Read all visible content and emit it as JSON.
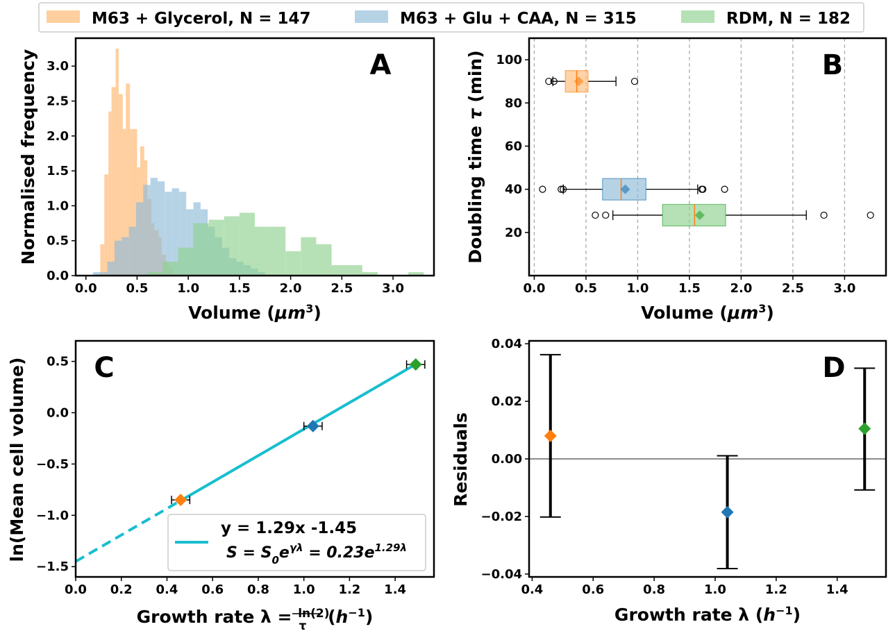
{
  "legend": {
    "entries": [
      {
        "label": "M63 + Glycerol, N = 147",
        "color": "#ffbb78"
      },
      {
        "label": "M63 + Glu + CAA, N = 315",
        "color": "#8fbbd9"
      },
      {
        "label": "RDM, N = 182",
        "color": "#8fd18f"
      }
    ]
  },
  "chart_data": [
    {
      "panel": "A",
      "type": "histogram",
      "xlabel": "Volume (μm³)",
      "ylabel": "Normalised frequency",
      "xlim": [
        -0.1,
        3.4
      ],
      "ylim": [
        0,
        3.4
      ],
      "xticks": [
        "0.0",
        "0.5",
        "1.0",
        "1.5",
        "2.0",
        "2.5",
        "3.0"
      ],
      "yticks": [
        "0.0",
        "0.5",
        "1.0",
        "1.5",
        "2.0",
        "2.5",
        "3.0"
      ],
      "series": [
        {
          "name": "M63 + Glycerol, N = 147",
          "color": "#ffbb78",
          "opacity": 0.7,
          "bins": [
            [
              0.14,
              0.18,
              0.45
            ],
            [
              0.18,
              0.22,
              1.45
            ],
            [
              0.22,
              0.25,
              2.35
            ],
            [
              0.25,
              0.29,
              2.7
            ],
            [
              0.29,
              0.32,
              3.25
            ],
            [
              0.32,
              0.36,
              2.6
            ],
            [
              0.36,
              0.39,
              2.1
            ],
            [
              0.39,
              0.43,
              2.75
            ],
            [
              0.43,
              0.46,
              2.1
            ],
            [
              0.46,
              0.5,
              2.1
            ],
            [
              0.5,
              0.53,
              1.55
            ],
            [
              0.53,
              0.57,
              1.85
            ],
            [
              0.57,
              0.6,
              1.65
            ],
            [
              0.6,
              0.64,
              1.1
            ],
            [
              0.64,
              0.67,
              0.75
            ],
            [
              0.67,
              0.71,
              0.65
            ],
            [
              0.71,
              0.74,
              0.55
            ],
            [
              0.74,
              0.78,
              0.3
            ],
            [
              0.78,
              0.81,
              0.2
            ],
            [
              0.81,
              0.85,
              0.1
            ]
          ]
        },
        {
          "name": "M63 + Glu + CAA, N = 315",
          "color": "#8fbbd9",
          "opacity": 0.65,
          "bins": [
            [
              0.07,
              0.14,
              0.05
            ],
            [
              0.14,
              0.21,
              0.05
            ],
            [
              0.21,
              0.28,
              0.2
            ],
            [
              0.28,
              0.35,
              0.5
            ],
            [
              0.35,
              0.42,
              0.55
            ],
            [
              0.42,
              0.49,
              0.7
            ],
            [
              0.49,
              0.56,
              1.05
            ],
            [
              0.56,
              0.63,
              1.3
            ],
            [
              0.63,
              0.7,
              1.4
            ],
            [
              0.7,
              0.77,
              1.35
            ],
            [
              0.77,
              0.84,
              1.2
            ],
            [
              0.84,
              0.91,
              1.25
            ],
            [
              0.91,
              0.98,
              1.2
            ],
            [
              0.98,
              1.05,
              0.95
            ],
            [
              1.05,
              1.12,
              1.05
            ],
            [
              1.12,
              1.19,
              0.95
            ],
            [
              1.19,
              1.26,
              0.7
            ],
            [
              1.26,
              1.33,
              0.55
            ],
            [
              1.33,
              1.4,
              0.4
            ],
            [
              1.4,
              1.47,
              0.25
            ],
            [
              1.47,
              1.54,
              0.2
            ],
            [
              1.54,
              1.61,
              0.15
            ],
            [
              1.61,
              1.68,
              0.1
            ],
            [
              1.68,
              1.75,
              0.05
            ]
          ]
        },
        {
          "name": "RDM, N = 182",
          "color": "#8fd18f",
          "opacity": 0.65,
          "bins": [
            [
              0.6,
              0.75,
              0.05
            ],
            [
              0.75,
              0.9,
              0.2
            ],
            [
              0.9,
              1.05,
              0.4
            ],
            [
              1.05,
              1.2,
              0.75
            ],
            [
              1.2,
              1.35,
              0.8
            ],
            [
              1.35,
              1.5,
              0.85
            ],
            [
              1.5,
              1.65,
              0.9
            ],
            [
              1.65,
              1.8,
              0.7
            ],
            [
              1.8,
              1.95,
              0.7
            ],
            [
              1.95,
              2.1,
              0.35
            ],
            [
              2.1,
              2.25,
              0.55
            ],
            [
              2.25,
              2.4,
              0.45
            ],
            [
              2.4,
              2.55,
              0.15
            ],
            [
              2.55,
              2.7,
              0.15
            ],
            [
              2.7,
              2.85,
              0.05
            ],
            [
              3.15,
              3.3,
              0.05
            ]
          ]
        }
      ],
      "panel_label": "A"
    },
    {
      "panel": "B",
      "type": "boxplot",
      "xlabel": "Volume (μm³)",
      "ylabel": "Doubling time τ (min)",
      "xlim": [
        -0.05,
        3.4
      ],
      "ylim": [
        0,
        110
      ],
      "xticks": [
        "0.0",
        "0.5",
        "1.0",
        "1.5",
        "2.0",
        "2.5",
        "3.0"
      ],
      "yticks": [
        "20",
        "40",
        "60",
        "80",
        "100"
      ],
      "grid": "vertical dashed",
      "boxes": [
        {
          "name": "M63 + Glycerol, N = 147",
          "tau": 90,
          "color": "#ffbb78",
          "marker_color": "#ff7f0e",
          "whisker_low": 0.18,
          "q1": 0.3,
          "median": 0.41,
          "mean": 0.43,
          "q3": 0.52,
          "whisker_high": 0.79,
          "fliers": [
            0.14,
            0.19,
            0.97
          ]
        },
        {
          "name": "M63 + Glu + CAA, N = 315",
          "tau": 40,
          "color": "#8fbbd9",
          "marker_color": "#1f77b4",
          "whisker_low": 0.28,
          "q1": 0.66,
          "median": 0.84,
          "mean": 0.88,
          "q3": 1.08,
          "whisker_high": 1.58,
          "fliers": [
            0.08,
            0.26,
            0.28,
            1.62,
            1.63,
            1.84
          ]
        },
        {
          "name": "RDM, N = 182",
          "tau": 28,
          "color": "#8fd18f",
          "marker_color": "#2ca02c",
          "whisker_low": 0.76,
          "q1": 1.24,
          "median": 1.55,
          "mean": 1.6,
          "q3": 1.85,
          "whisker_high": 2.63,
          "fliers": [
            0.59,
            0.69,
            2.8,
            3.25
          ]
        }
      ],
      "panel_label": "B"
    },
    {
      "panel": "C",
      "type": "line",
      "xlabel": "Growth rate λ = ln(2)/τ (h⁻¹)",
      "ylabel": "ln(Mean cell volume)",
      "xlim": [
        0,
        1.57
      ],
      "ylim": [
        -1.6,
        0.7
      ],
      "xticks": [
        "0.0",
        "0.2",
        "0.4",
        "0.6",
        "0.8",
        "1.0",
        "1.2",
        "1.4"
      ],
      "yticks": [
        "0.5",
        "0.0",
        "−0.5",
        "−1.0",
        "−1.5"
      ],
      "fit": {
        "slope": 1.29,
        "intercept": -1.45,
        "color": "#17becf",
        "label_line1": "y = 1.29x -1.45",
        "label_line2": "S = S₀e^γλ = 0.23e^1.29λ"
      },
      "points": [
        {
          "x": 0.46,
          "y": -0.85,
          "err": 0.04,
          "color": "#ff7f0e"
        },
        {
          "x": 1.04,
          "y": -0.13,
          "err": 0.04,
          "color": "#1f77b4"
        },
        {
          "x": 1.49,
          "y": 0.47,
          "err": 0.04,
          "color": "#2ca02c"
        }
      ],
      "panel_label": "C"
    },
    {
      "panel": "D",
      "type": "scatter",
      "xlabel": "Growth rate λ (h⁻¹)",
      "ylabel": "Residuals",
      "xlim": [
        0.39,
        1.56
      ],
      "ylim": [
        -0.041,
        0.041
      ],
      "xticks": [
        "0.4",
        "0.6",
        "0.8",
        "1.0",
        "1.2",
        "1.4"
      ],
      "yticks": [
        "0.04",
        "0.02",
        "0.00",
        "−0.02",
        "−0.04"
      ],
      "points": [
        {
          "x": 0.46,
          "y": 0.008,
          "err_low": -0.0202,
          "err_high": 0.0362,
          "color": "#ff7f0e"
        },
        {
          "x": 1.04,
          "y": -0.0185,
          "err_low": -0.0381,
          "err_high": 0.0011,
          "color": "#1f77b4"
        },
        {
          "x": 1.49,
          "y": 0.0105,
          "err_low": -0.0108,
          "err_high": 0.0315,
          "color": "#2ca02c"
        }
      ],
      "panel_label": "D"
    }
  ]
}
